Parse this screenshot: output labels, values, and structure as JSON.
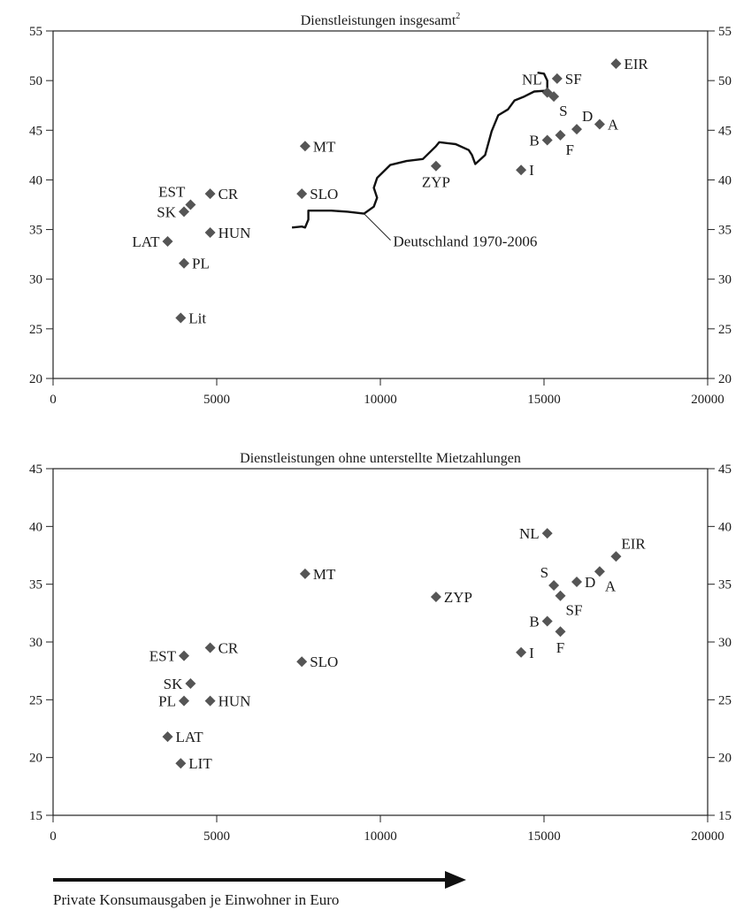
{
  "chart_data": [
    {
      "type": "scatter",
      "title": "Dienstleistungen insgesamt",
      "title_superscript": "2",
      "xlim": [
        0,
        20000
      ],
      "ylim": [
        20,
        55
      ],
      "x_ticks": [
        0,
        5000,
        10000,
        15000,
        20000
      ],
      "y_ticks": [
        20,
        25,
        30,
        35,
        40,
        45,
        50,
        55
      ],
      "points": [
        {
          "label": "Lit",
          "x": 3900,
          "y": 26.1,
          "label_pos": "right"
        },
        {
          "label": "PL",
          "x": 4000,
          "y": 31.6,
          "label_pos": "right"
        },
        {
          "label": "LAT",
          "x": 3500,
          "y": 33.8,
          "label_pos": "left"
        },
        {
          "label": "HUN",
          "x": 4800,
          "y": 34.7,
          "label_pos": "right"
        },
        {
          "label": "SK",
          "x": 4000,
          "y": 36.8,
          "label_pos": "left"
        },
        {
          "label": "EST",
          "x": 4200,
          "y": 37.5,
          "label_pos": "above-left"
        },
        {
          "label": "CR",
          "x": 4800,
          "y": 38.6,
          "label_pos": "right"
        },
        {
          "label": "MT",
          "x": 7700,
          "y": 43.4,
          "label_pos": "right"
        },
        {
          "label": "SLO",
          "x": 7600,
          "y": 38.6,
          "label_pos": "right"
        },
        {
          "label": "ZYP",
          "x": 11700,
          "y": 41.4,
          "label_pos": "below"
        },
        {
          "label": "I",
          "x": 14300,
          "y": 41.0,
          "label_pos": "right"
        },
        {
          "label": "B",
          "x": 15100,
          "y": 44.0,
          "label_pos": "left"
        },
        {
          "label": "F",
          "x": 15500,
          "y": 44.5,
          "label_pos": "below-right"
        },
        {
          "label": "D",
          "x": 16000,
          "y": 45.1,
          "label_pos": "above-right"
        },
        {
          "label": "A",
          "x": 16700,
          "y": 45.6,
          "label_pos": "right"
        },
        {
          "label": "NL",
          "x": 15100,
          "y": 48.8,
          "label_pos": "above-left"
        },
        {
          "label": "S",
          "x": 15300,
          "y": 48.4,
          "label_pos": "below-right"
        },
        {
          "label": "SF",
          "x": 15400,
          "y": 50.2,
          "label_pos": "right"
        },
        {
          "label": "EIR",
          "x": 17200,
          "y": 51.7,
          "label_pos": "right"
        }
      ],
      "line_series": {
        "name": "Deutschland 1970-2006",
        "points": [
          [
            7300,
            35.2
          ],
          [
            7600,
            35.3
          ],
          [
            7700,
            35.2
          ],
          [
            7800,
            36.0
          ],
          [
            7800,
            36.9
          ],
          [
            8500,
            36.9
          ],
          [
            9000,
            36.8
          ],
          [
            9500,
            36.6
          ],
          [
            9800,
            37.3
          ],
          [
            9900,
            38.2
          ],
          [
            9800,
            39.2
          ],
          [
            9900,
            40.2
          ],
          [
            10300,
            41.5
          ],
          [
            10800,
            41.9
          ],
          [
            11300,
            42.1
          ],
          [
            11700,
            43.4
          ],
          [
            11800,
            43.8
          ],
          [
            12300,
            43.6
          ],
          [
            12700,
            43.0
          ],
          [
            12800,
            42.5
          ],
          [
            12900,
            41.6
          ],
          [
            13200,
            42.5
          ],
          [
            13400,
            44.9
          ],
          [
            13600,
            46.5
          ],
          [
            13900,
            47.1
          ],
          [
            14100,
            48.0
          ],
          [
            14400,
            48.4
          ],
          [
            14700,
            48.9
          ],
          [
            15100,
            49.0
          ],
          [
            15100,
            50.0
          ],
          [
            15000,
            50.7
          ],
          [
            14800,
            50.8
          ]
        ],
        "annotation_at": [
          9500,
          36.6
        ]
      }
    },
    {
      "type": "scatter",
      "title": "Dienstleistungen ohne unterstellte Mietzahlungen",
      "xlim": [
        0,
        20000
      ],
      "ylim": [
        15,
        45
      ],
      "x_ticks": [
        0,
        5000,
        10000,
        15000,
        20000
      ],
      "y_ticks": [
        15,
        20,
        25,
        30,
        35,
        40,
        45
      ],
      "points": [
        {
          "label": "LIT",
          "x": 3900,
          "y": 19.5,
          "label_pos": "right"
        },
        {
          "label": "LAT",
          "x": 3500,
          "y": 21.8,
          "label_pos": "right"
        },
        {
          "label": "PL",
          "x": 4000,
          "y": 24.9,
          "label_pos": "left"
        },
        {
          "label": "HUN",
          "x": 4800,
          "y": 24.9,
          "label_pos": "right"
        },
        {
          "label": "SK",
          "x": 4200,
          "y": 26.4,
          "label_pos": "left"
        },
        {
          "label": "EST",
          "x": 4000,
          "y": 28.8,
          "label_pos": "left"
        },
        {
          "label": "CR",
          "x": 4800,
          "y": 29.5,
          "label_pos": "right"
        },
        {
          "label": "SLO",
          "x": 7600,
          "y": 28.3,
          "label_pos": "right"
        },
        {
          "label": "MT",
          "x": 7700,
          "y": 35.9,
          "label_pos": "right"
        },
        {
          "label": "ZYP",
          "x": 11700,
          "y": 33.9,
          "label_pos": "right"
        },
        {
          "label": "I",
          "x": 14300,
          "y": 29.1,
          "label_pos": "right"
        },
        {
          "label": "B",
          "x": 15100,
          "y": 31.8,
          "label_pos": "left"
        },
        {
          "label": "F",
          "x": 15500,
          "y": 30.9,
          "label_pos": "below"
        },
        {
          "label": "S",
          "x": 15300,
          "y": 34.9,
          "label_pos": "above-left"
        },
        {
          "label": "SF",
          "x": 15500,
          "y": 34.0,
          "label_pos": "below-right"
        },
        {
          "label": "D",
          "x": 16000,
          "y": 35.2,
          "label_pos": "right"
        },
        {
          "label": "A",
          "x": 16700,
          "y": 36.1,
          "label_pos": "below-right"
        },
        {
          "label": "NL",
          "x": 15100,
          "y": 39.4,
          "label_pos": "left"
        },
        {
          "label": "EIR",
          "x": 17200,
          "y": 37.4,
          "label_pos": "above-right"
        }
      ]
    }
  ],
  "x_caption": "Private Konsumausgaben je Einwohner in Euro",
  "marker_color": "#555555",
  "line_color": "#111111"
}
